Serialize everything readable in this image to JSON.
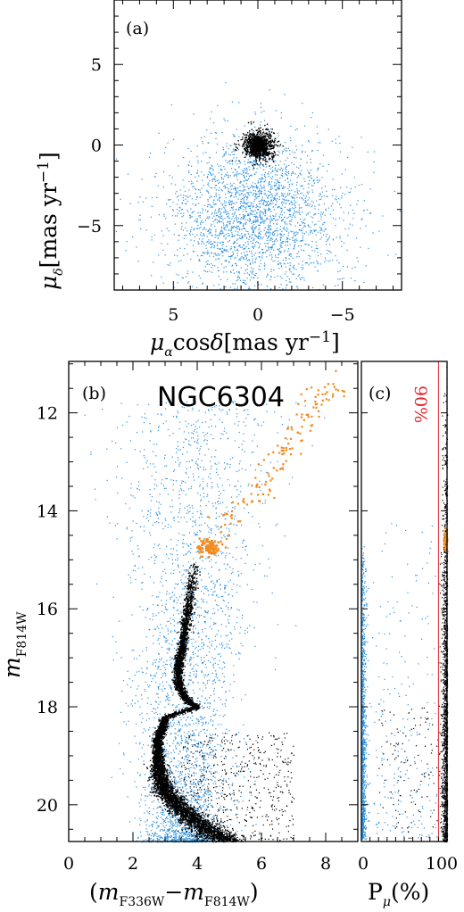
{
  "chart_data": [
    {
      "panel": "(a)",
      "type": "scatter",
      "xlabel": "μαcosδ[mas yr⁻¹]",
      "ylabel": "μδ[mas yr⁻¹]",
      "xlim": [
        8.5,
        -8.5
      ],
      "ylim": [
        -9,
        9
      ],
      "xticks": [
        5,
        0,
        -5
      ],
      "yticks": [
        5,
        0,
        -5
      ],
      "xtick_labels": [
        "5",
        "0",
        "−5"
      ],
      "ytick_labels": [
        "5",
        "0",
        "−5"
      ],
      "series": [
        {
          "color": "#000000",
          "role": "cluster members",
          "center": [
            0,
            0
          ],
          "spread": 0.6,
          "count": 1400
        },
        {
          "color": "#2b8fde",
          "role": "field stars",
          "center": [
            0.2,
            -4.3
          ],
          "spread": 2.6,
          "count": 2600
        }
      ]
    },
    {
      "panel": "(b)",
      "type": "scatter",
      "title": "NGC6304",
      "xlabel": "(mF336W−mF814W)",
      "ylabel": "mF814W",
      "xlim": [
        0,
        9
      ],
      "ylim": [
        20.75,
        10.95
      ],
      "xticks": [
        0,
        2,
        4,
        6,
        8
      ],
      "yticks": [
        12,
        14,
        16,
        18,
        20
      ],
      "xtick_labels": [
        "0",
        "2",
        "4",
        "6",
        "8"
      ],
      "ytick_labels": [
        "12",
        "14",
        "16",
        "18",
        "20"
      ],
      "sequence": [
        [
          3.9,
          15.05
        ],
        [
          3.75,
          15.8
        ],
        [
          3.55,
          16.6
        ],
        [
          3.4,
          17.2
        ],
        [
          3.4,
          17.55
        ],
        [
          3.6,
          17.8
        ],
        [
          3.95,
          18.0
        ],
        [
          3.0,
          18.2
        ],
        [
          2.75,
          18.7
        ],
        [
          2.78,
          19.3
        ],
        [
          3.0,
          19.75
        ],
        [
          3.5,
          20.1
        ],
        [
          4.2,
          20.45
        ],
        [
          5.0,
          20.75
        ]
      ],
      "series": [
        {
          "color": "#000000",
          "role": "cluster members"
        },
        {
          "color": "#2b8fde",
          "role": "field stars"
        },
        {
          "color": "#f28a1e",
          "role": "red clump and giant branch",
          "clump_center": [
            4.3,
            14.72
          ],
          "rgb_points": [
            [
              4.8,
              14.3
            ],
            [
              5.2,
              14.0
            ],
            [
              5.8,
              13.6
            ],
            [
              6.3,
              13.2
            ],
            [
              7.0,
              12.4
            ],
            [
              7.6,
              11.8
            ],
            [
              8.3,
              11.3
            ]
          ]
        }
      ]
    },
    {
      "panel": "(c)",
      "type": "scatter",
      "xlabel": "Pμ(%)",
      "xlim": [
        0,
        100
      ],
      "ylim": [
        20.75,
        10.95
      ],
      "xticks": [
        0,
        100
      ],
      "xtick_labels": [
        "0",
        "100"
      ],
      "threshold": 90,
      "threshold_label": "90%",
      "threshold_color": "#e3242b",
      "series": [
        {
          "color": "#000000",
          "role": "high membership probability"
        },
        {
          "color": "#2b8fde",
          "role": "low membership probability"
        },
        {
          "color": "#f28a1e",
          "role": "red clump and giant branch"
        }
      ]
    }
  ]
}
